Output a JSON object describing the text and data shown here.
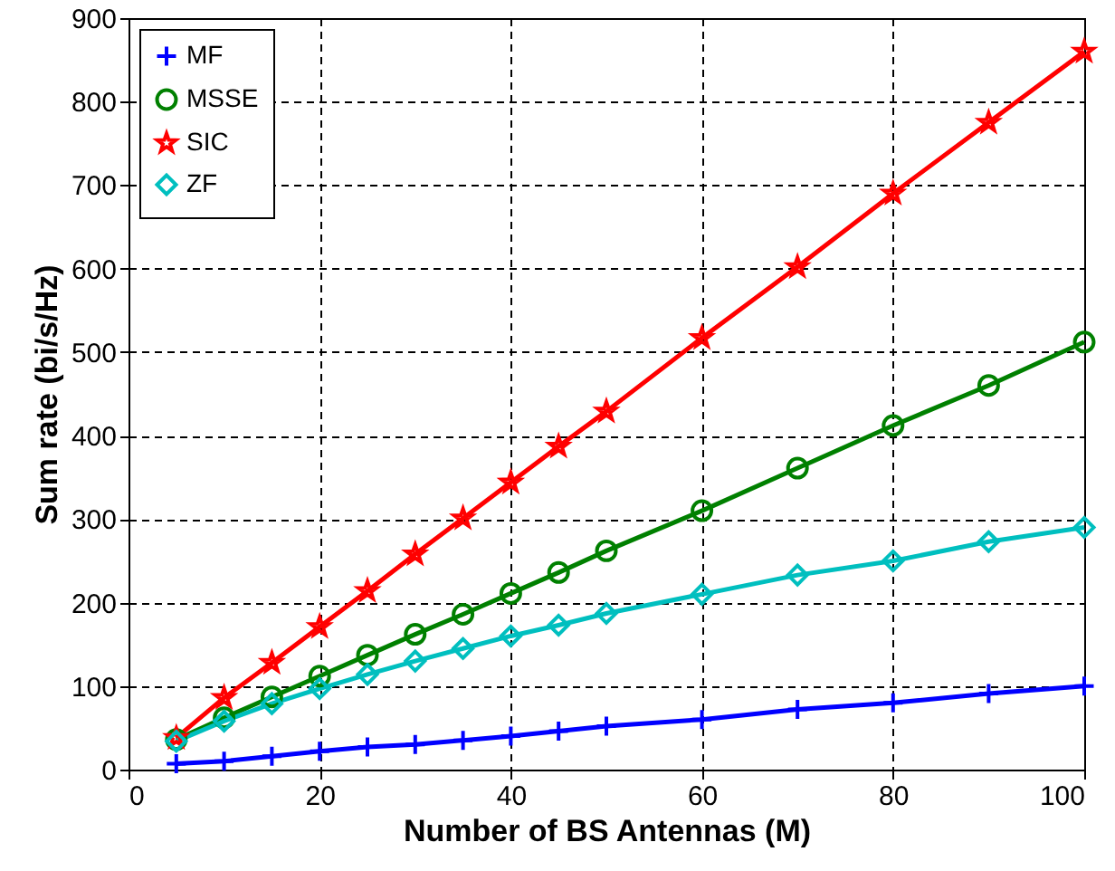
{
  "chart_data": {
    "type": "line",
    "xlabel": "Number of BS Antennas (M)",
    "ylabel": "Sum rate (bi/s/Hz)",
    "x": [
      5,
      10,
      15,
      20,
      25,
      30,
      35,
      40,
      45,
      50,
      60,
      70,
      80,
      90,
      100
    ],
    "series": [
      {
        "name": "MF",
        "color": "#0000ff",
        "marker": "cross",
        "values": [
          7,
          10,
          16,
          22,
          27,
          30,
          35,
          40,
          46,
          52,
          60,
          72,
          80,
          91,
          100
        ]
      },
      {
        "name": "MSSE",
        "color": "#008000",
        "marker": "circle",
        "values": [
          36,
          62,
          87,
          112,
          137,
          162,
          186,
          211,
          236,
          262,
          310,
          361,
          412,
          460,
          512
        ]
      },
      {
        "name": "SIC",
        "color": "#ff0000",
        "marker": "star",
        "values": [
          38,
          86,
          128,
          171,
          214,
          258,
          301,
          344,
          387,
          429,
          517,
          602,
          690,
          775,
          860
        ]
      },
      {
        "name": "ZF",
        "color": "#00bfbf",
        "marker": "diamond",
        "values": [
          34,
          58,
          79,
          97,
          114,
          130,
          145,
          160,
          173,
          187,
          210,
          233,
          250,
          273,
          290
        ]
      }
    ],
    "xlim": [
      0,
      100
    ],
    "xticks": [
      0,
      20,
      40,
      60,
      80,
      100
    ],
    "ylim": [
      0,
      900
    ],
    "yticks": [
      0,
      100,
      200,
      300,
      400,
      500,
      600,
      700,
      800,
      900
    ],
    "grid": true,
    "legend": "top left"
  }
}
